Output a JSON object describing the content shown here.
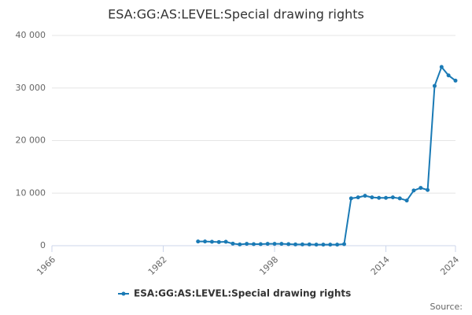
{
  "chart_data": {
    "type": "line",
    "title": "ESA:GG:AS:LEVEL:Special drawing rights",
    "x": [
      1987,
      1988,
      1989,
      1990,
      1991,
      1992,
      1993,
      1994,
      1995,
      1996,
      1997,
      1998,
      1999,
      2000,
      2001,
      2002,
      2003,
      2004,
      2005,
      2006,
      2007,
      2008,
      2009,
      2010,
      2011,
      2012,
      2013,
      2014,
      2015,
      2016,
      2017,
      2018,
      2019,
      2020,
      2021,
      2022,
      2023,
      2024
    ],
    "series": [
      {
        "name": "ESA:GG:AS:LEVEL:Special drawing rights",
        "color": "#1a7ab5",
        "values": [
          800,
          800,
          750,
          700,
          750,
          400,
          250,
          350,
          300,
          300,
          350,
          350,
          350,
          300,
          250,
          250,
          250,
          200,
          200,
          200,
          200,
          300,
          9000,
          9200,
          9500,
          9200,
          9100,
          9100,
          9200,
          9000,
          8600,
          10500,
          11000,
          10600,
          30400,
          34000,
          32400,
          31400
        ]
      }
    ],
    "xlim": [
      1966,
      2024
    ],
    "xticks": [
      1966,
      1982,
      1998,
      2014,
      2024
    ],
    "ylim": [
      0,
      40000
    ],
    "yticks": [
      0,
      {
        "value": 10000,
        "label": "10 000"
      },
      {
        "value": 20000,
        "label": "20 000"
      },
      {
        "value": 30000,
        "label": "30 000"
      },
      {
        "value": 40000,
        "label": "40 000"
      }
    ],
    "grid": true,
    "legend": "bottom",
    "source": "Source:"
  }
}
